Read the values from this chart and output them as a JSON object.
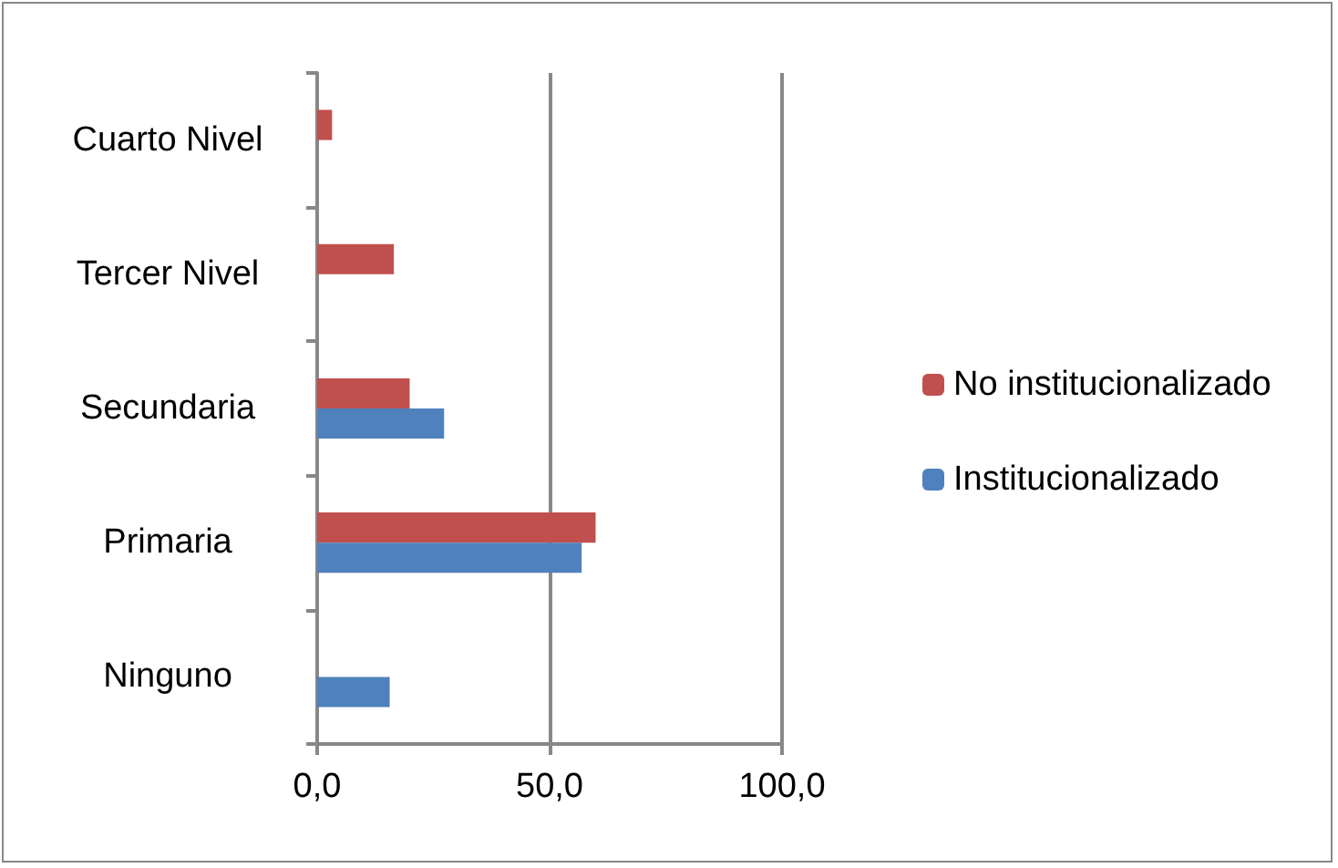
{
  "chart_data": {
    "type": "bar",
    "orientation": "horizontal",
    "categories": [
      "Cuarto Nivel",
      "Tercer Nivel",
      "Secundaria",
      "Primaria",
      "Ninguno"
    ],
    "series": [
      {
        "name": "No institucionalizado",
        "color": "#c0504d",
        "values": [
          3.2,
          16.5,
          19.9,
          59.9,
          null
        ]
      },
      {
        "name": "Institucionalizado",
        "color": "#4f81bd",
        "values": [
          null,
          null,
          27.3,
          56.9,
          15.6
        ]
      }
    ],
    "xlim": [
      0,
      100
    ],
    "xticks": [
      {
        "value": 0,
        "label": "0,0"
      },
      {
        "value": 50,
        "label": "50,0"
      },
      {
        "value": 100,
        "label": "100,0"
      }
    ],
    "grid": "x",
    "legend": "right"
  }
}
